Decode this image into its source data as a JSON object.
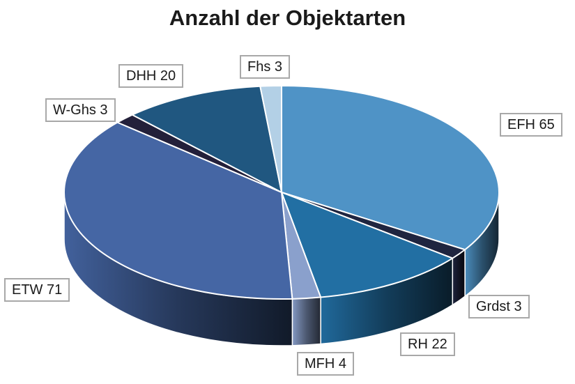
{
  "chart_data": {
    "type": "pie",
    "title": "Anzahl der Objektarten",
    "slices": [
      {
        "label": "EFH 65",
        "value": 65,
        "color": "#4f93c6"
      },
      {
        "label": "Grdst 3",
        "value": 3,
        "color": "#1f2540"
      },
      {
        "label": "RH 22",
        "value": 22,
        "color": "#226fa3"
      },
      {
        "label": "MFH 4",
        "value": 4,
        "color": "#8aa0cc"
      },
      {
        "label": "ETW 71",
        "value": 71,
        "color": "#4566a4"
      },
      {
        "label": "W-Ghs 3",
        "value": 3,
        "color": "#23203a"
      },
      {
        "label": "DHH 20",
        "value": 20,
        "color": "#205780"
      },
      {
        "label": "Fhs 3",
        "value": 3,
        "color": "#b3d0e6"
      }
    ],
    "legend": "callout labels"
  }
}
